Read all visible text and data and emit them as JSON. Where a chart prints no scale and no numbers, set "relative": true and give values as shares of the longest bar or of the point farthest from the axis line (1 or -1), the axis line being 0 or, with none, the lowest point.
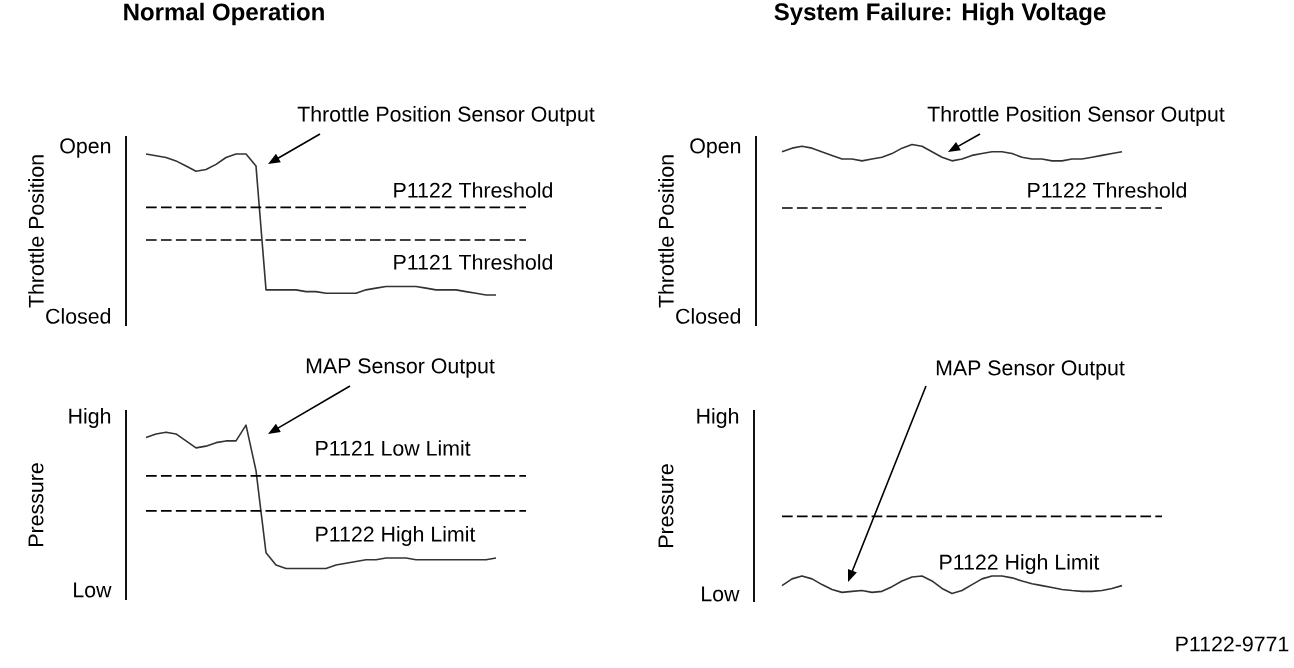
{
  "chart_data": [
    {
      "type": "line",
      "title": "Normal Operation",
      "ylabel": "Throttle Position",
      "categories": [
        null,
        null,
        null,
        null,
        null,
        null,
        null,
        null,
        null,
        null,
        null,
        null,
        null,
        null,
        null,
        null,
        null,
        null,
        null,
        null,
        null,
        null,
        null,
        null,
        null,
        null,
        null,
        null,
        null,
        null,
        null,
        null,
        null,
        null,
        null,
        null,
        null,
        null,
        null
      ],
      "relative": true,
      "marker": "none",
      "series": [
        {
          "color": "#333333",
          "values": [
            1,
            0.99,
            0.98,
            0.96,
            0.93,
            0.9,
            0.91,
            0.94,
            0.98,
            1,
            1,
            0.93,
            0.21,
            0.21,
            0.21,
            0.21,
            0.2,
            0.2,
            0.19,
            0.19,
            0.19,
            0.19,
            0.21,
            0.22,
            0.23,
            0.23,
            0.23,
            0.23,
            0.22,
            0.21,
            0.21,
            0.21,
            0.2,
            0.19,
            0.18,
            0.18,
            null,
            null,
            null
          ]
        }
      ],
      "ref_lines": [
        {
          "axis": "y",
          "value": 0.69,
          "label": "P1122 Threshold",
          "color": "#000000",
          "line_style": "dashed"
        },
        {
          "axis": "y",
          "value": 0.5,
          "label": "P1121 Threshold",
          "color": "#000000",
          "line_style": "dashed"
        }
      ],
      "annotations": [
        "Open",
        "Closed",
        "Throttle Position Sensor Output"
      ]
    },
    {
      "type": "line",
      "title": "System Failure: High Voltage",
      "ylabel": "Throttle Position",
      "categories": [
        null,
        null,
        null,
        null,
        null,
        null,
        null,
        null,
        null,
        null,
        null,
        null,
        null,
        null,
        null,
        null,
        null,
        null,
        null,
        null,
        null,
        null,
        null,
        null,
        null,
        null,
        null,
        null,
        null,
        null,
        null,
        null,
        null,
        null,
        null,
        null,
        null,
        null,
        null
      ],
      "relative": true,
      "marker": "none",
      "series": [
        {
          "color": "#333333",
          "values": [
            0.96,
            0.98,
            0.99,
            0.98,
            0.96,
            0.94,
            0.92,
            0.92,
            0.91,
            0.92,
            0.93,
            0.95,
            0.98,
            1,
            0.99,
            0.96,
            0.93,
            0.91,
            0.92,
            0.94,
            0.95,
            0.96,
            0.96,
            0.95,
            0.93,
            0.92,
            0.92,
            0.91,
            0.91,
            0.92,
            0.92,
            0.93,
            0.94,
            0.95,
            0.96,
            null,
            null,
            null,
            null
          ]
        }
      ],
      "ref_lines": [
        {
          "axis": "y",
          "value": 0.65,
          "label": "P1122 Threshold",
          "color": "#000000",
          "line_style": "dashed"
        }
      ],
      "annotations": [
        "Open",
        "Closed",
        "Throttle Position Sensor Output"
      ]
    },
    {
      "type": "line",
      "ylabel": "Pressure",
      "categories": [
        null,
        null,
        null,
        null,
        null,
        null,
        null,
        null,
        null,
        null,
        null,
        null,
        null,
        null,
        null,
        null,
        null,
        null,
        null,
        null,
        null,
        null,
        null,
        null,
        null,
        null,
        null,
        null,
        null,
        null,
        null,
        null,
        null,
        null,
        null,
        null,
        null,
        null,
        null
      ],
      "relative": true,
      "marker": "none",
      "series": [
        {
          "color": "#333333",
          "values": [
            0.93,
            0.95,
            0.96,
            0.95,
            0.91,
            0.87,
            0.88,
            0.9,
            0.91,
            0.91,
            1,
            0.74,
            0.27,
            0.2,
            0.18,
            0.18,
            0.18,
            0.18,
            0.18,
            0.2,
            0.21,
            0.22,
            0.23,
            0.23,
            0.24,
            0.24,
            0.24,
            0.23,
            0.23,
            0.23,
            0.23,
            0.23,
            0.23,
            0.23,
            0.23,
            0.24,
            null,
            null,
            null
          ]
        }
      ],
      "ref_lines": [
        {
          "axis": "y",
          "value": 0.71,
          "label": "P1121 Low Limit",
          "color": "#000000",
          "line_style": "dashed"
        },
        {
          "axis": "y",
          "value": 0.51,
          "label": "P1122 High Limit",
          "color": "#000000",
          "line_style": "dashed"
        }
      ],
      "annotations": [
        "High",
        "Low",
        "MAP Sensor Output"
      ]
    },
    {
      "type": "line",
      "ylabel": "Pressure",
      "categories": [
        null,
        null,
        null,
        null,
        null,
        null,
        null,
        null,
        null,
        null,
        null,
        null,
        null,
        null,
        null,
        null,
        null,
        null,
        null,
        null,
        null,
        null,
        null,
        null,
        null,
        null,
        null,
        null,
        null,
        null,
        null,
        null,
        null,
        null,
        null,
        null,
        null,
        null,
        null
      ],
      "relative": true,
      "marker": "none",
      "series": [
        {
          "color": "#333333",
          "values": [
            0.63,
            0.89,
            1,
            0.89,
            0.67,
            0.48,
            0.37,
            0.41,
            0.44,
            0.37,
            0.41,
            0.59,
            0.81,
            0.96,
            1,
            0.81,
            0.52,
            0.33,
            0.44,
            0.67,
            0.89,
            1,
            1,
            0.93,
            0.81,
            0.7,
            0.63,
            0.56,
            0.48,
            0.44,
            0.41,
            0.41,
            0.44,
            0.52,
            0.63,
            null,
            null,
            null,
            null
          ]
        }
      ],
      "ref_lines": [
        {
          "axis": "y",
          "value": 3.3,
          "label": "P1122 High Limit",
          "color": "#000000",
          "line_style": "dashed"
        }
      ],
      "annotations": [
        "High",
        "Low",
        "MAP Sensor Output",
        "P1122-9771"
      ]
    }
  ]
}
